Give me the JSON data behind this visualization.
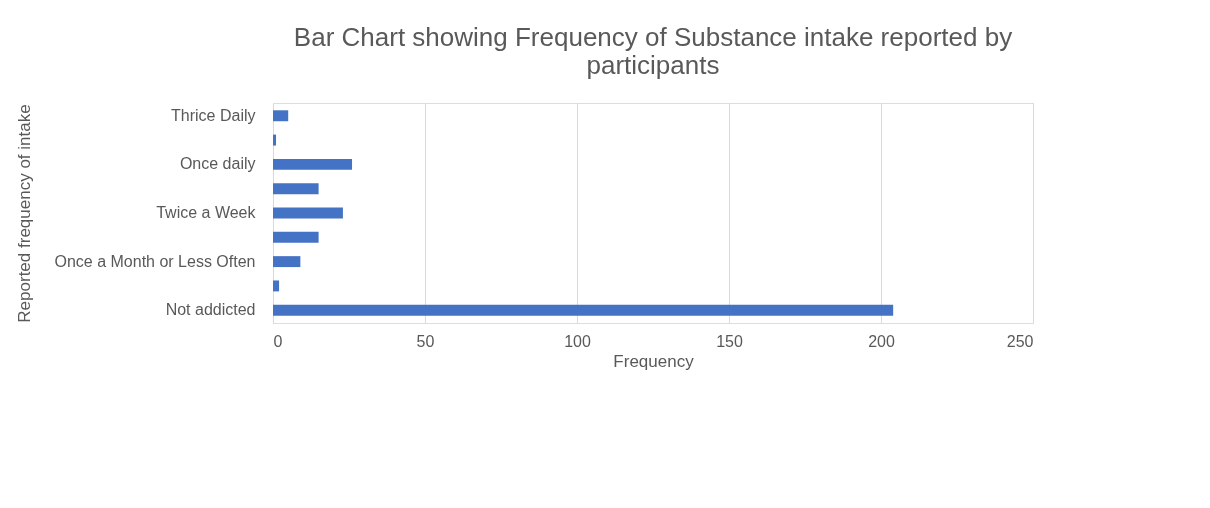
{
  "chart_data": {
    "type": "bar",
    "orientation": "horizontal",
    "title": "Bar Chart showing Frequency of Substance intake reported by participants",
    "xlabel": "Frequency",
    "ylabel": "Reported frequency of intake",
    "categories": [
      "Thrice Daily",
      null,
      "Once daily",
      null,
      "Twice a Week",
      null,
      "Once a Month or Less Often",
      null,
      "Not addicted"
    ],
    "values": [
      5,
      1,
      26,
      15,
      23,
      15,
      9,
      2,
      204
    ],
    "color": "#4472c4",
    "xlim": [
      0,
      250
    ],
    "xticks": [
      0,
      50,
      100,
      150,
      200,
      250
    ],
    "grid": "x"
  }
}
